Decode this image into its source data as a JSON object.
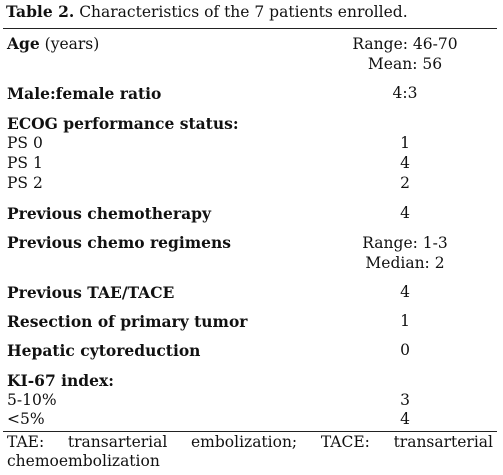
{
  "table": {
    "caption_label": "Table 2.",
    "caption_text": " Characteristics of the 7 patients enrolled.",
    "rows": [
      {
        "label": "Age",
        "label_suffix": " (years)",
        "values": [
          "Range: 46-70",
          "Mean: 56"
        ]
      },
      {
        "label": "Male:female ratio",
        "values": [
          "4:3"
        ]
      },
      {
        "label": "ECOG performance status:",
        "values": []
      },
      {
        "label": "PS 0",
        "values": [
          "1"
        ]
      },
      {
        "label": "PS 1",
        "values": [
          "4"
        ]
      },
      {
        "label": "PS 2",
        "values": [
          "2"
        ]
      },
      {
        "label": "Previous chemotherapy",
        "values": [
          "4"
        ]
      },
      {
        "label": "Previous chemo regimens",
        "values": [
          "Range: 1-3",
          "Median: 2"
        ]
      },
      {
        "label": "Previous TAE/TACE",
        "values": [
          "4"
        ]
      },
      {
        "label": "Resection of primary tumor",
        "values": [
          "1"
        ]
      },
      {
        "label": "Hepatic cytoreduction",
        "values": [
          "0"
        ]
      },
      {
        "label": "KI-67 index:",
        "values": []
      },
      {
        "label": "5-10%",
        "values": [
          "3"
        ]
      },
      {
        "label": "<5%",
        "values": [
          "4"
        ]
      }
    ]
  },
  "footnote": {
    "words_line1": [
      "TAE:",
      "transarterial",
      "embolization;",
      "TACE:",
      "transarterial"
    ],
    "line2": "chemoembolization"
  }
}
